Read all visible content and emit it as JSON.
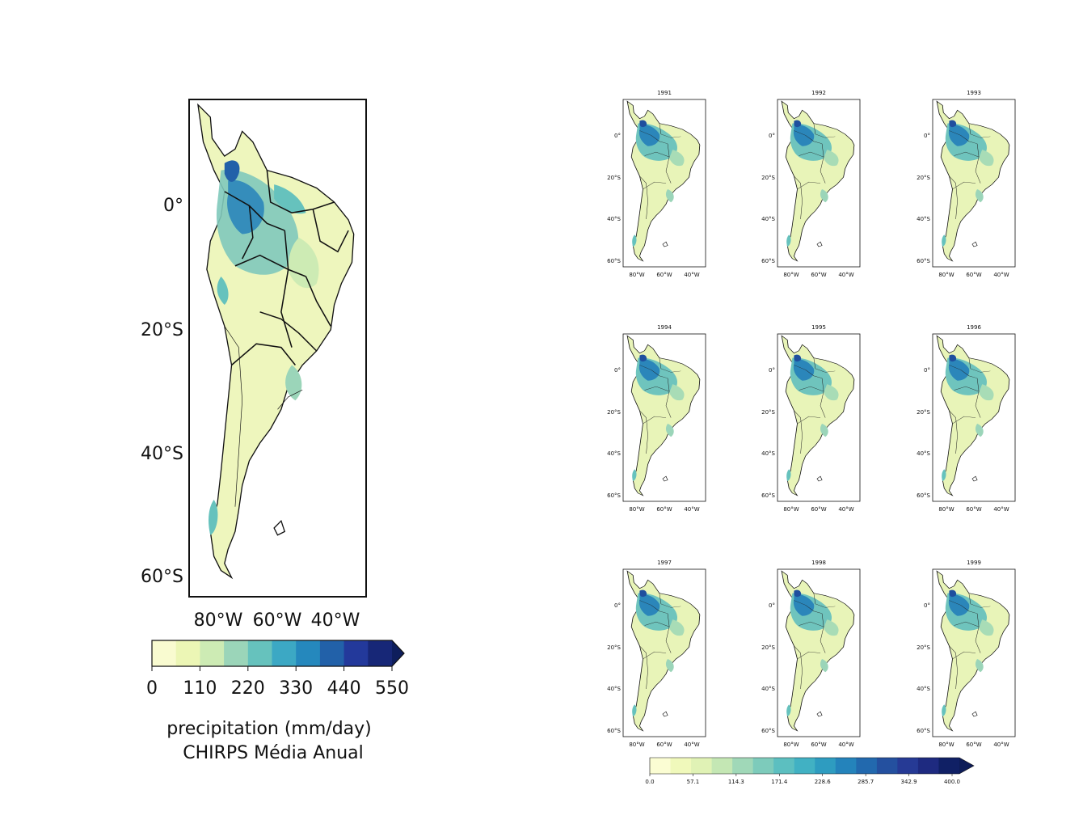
{
  "main_map": {
    "lat_ticks": [
      "0°",
      "20°S",
      "40°S",
      "60°S"
    ],
    "lon_ticks": [
      "80°W",
      "60°W",
      "40°W"
    ],
    "colorbar": {
      "colors": [
        "#f9fbd0",
        "#ecf6b5",
        "#cdebb4",
        "#9bd5b9",
        "#66c2bd",
        "#3ca8c4",
        "#2588bd",
        "#2261a9",
        "#23399b",
        "#172777"
      ],
      "ticks": [
        "0",
        "110",
        "220",
        "330",
        "440",
        "550"
      ],
      "label": "precipitation (mm/day)",
      "sublabel": "CHIRPS Média Anual"
    }
  },
  "panels": {
    "years": [
      "1991",
      "1992",
      "1993",
      "1994",
      "1995",
      "1996",
      "1997",
      "1998",
      "1999"
    ],
    "lat_ticks": [
      "0°",
      "20°S",
      "40°S",
      "60°S"
    ],
    "lon_ticks": [
      "80°W",
      "60°W",
      "40°W"
    ],
    "colorbar": {
      "colors": [
        "#fbfdd3",
        "#f0f9bb",
        "#e0f2b5",
        "#c4e7b4",
        "#a0d8b8",
        "#7dcbbb",
        "#5cbfc0",
        "#41b1c3",
        "#2e9cc0",
        "#2483bb",
        "#2269ae",
        "#24509f",
        "#263a95",
        "#1e2a80",
        "#102065"
      ],
      "ticks": [
        "0.0",
        "57.1",
        "114.3",
        "171.4",
        "228.6",
        "285.7",
        "342.9",
        "400.0"
      ]
    }
  }
}
